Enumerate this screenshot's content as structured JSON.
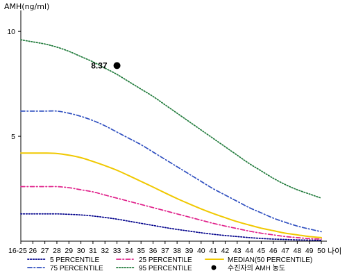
{
  "chart_data": {
    "type": "line",
    "ylabel": "AMH(ng/ml)",
    "xlabel": "나이",
    "categories": [
      "16-25",
      "26",
      "27",
      "28",
      "29",
      "30",
      "31",
      "32",
      "33",
      "34",
      "35",
      "36",
      "37",
      "38",
      "39",
      "40",
      "41",
      "42",
      "43",
      "44",
      "45",
      "46",
      "47",
      "48",
      "49",
      "50"
    ],
    "y_ticks": [
      5,
      10
    ],
    "ylim": [
      0,
      11
    ],
    "grid": false,
    "series": [
      {
        "name": "5 PERCENTILE",
        "color": "#00008b",
        "style": "dotted",
        "values": [
          1.3,
          1.3,
          1.3,
          1.3,
          1.28,
          1.25,
          1.2,
          1.13,
          1.05,
          0.95,
          0.85,
          0.75,
          0.65,
          0.56,
          0.48,
          0.4,
          0.33,
          0.27,
          0.22,
          0.17,
          0.13,
          0.1,
          0.08,
          0.06,
          0.05,
          0.04
        ]
      },
      {
        "name": "75 PERCENTILE",
        "color": "#3050c0",
        "style": "dashdot",
        "values": [
          6.2,
          6.2,
          6.2,
          6.2,
          6.1,
          5.95,
          5.75,
          5.5,
          5.2,
          4.9,
          4.6,
          4.25,
          3.9,
          3.55,
          3.2,
          2.85,
          2.5,
          2.2,
          1.9,
          1.6,
          1.35,
          1.1,
          0.9,
          0.72,
          0.58,
          0.45
        ]
      },
      {
        "name": "25 PERCENTILE",
        "color": "#e0208a",
        "style": "dashdot",
        "values": [
          2.6,
          2.6,
          2.6,
          2.6,
          2.55,
          2.45,
          2.35,
          2.2,
          2.05,
          1.9,
          1.75,
          1.6,
          1.45,
          1.3,
          1.15,
          1.0,
          0.85,
          0.72,
          0.6,
          0.48,
          0.38,
          0.3,
          0.22,
          0.17,
          0.12,
          0.1
        ]
      },
      {
        "name": "95 PERCENTILE",
        "color": "#1f7a3a",
        "style": "dotted",
        "values": [
          9.6,
          9.5,
          9.4,
          9.25,
          9.05,
          8.8,
          8.55,
          8.25,
          7.95,
          7.6,
          7.25,
          6.9,
          6.5,
          6.1,
          5.7,
          5.3,
          4.9,
          4.5,
          4.1,
          3.7,
          3.35,
          3.0,
          2.7,
          2.45,
          2.25,
          2.05
        ]
      },
      {
        "name": "MEDIAN(50 PERCENTILE)",
        "color": "#f0c800",
        "style": "solid",
        "values": [
          4.2,
          4.2,
          4.2,
          4.18,
          4.1,
          3.98,
          3.8,
          3.6,
          3.38,
          3.12,
          2.85,
          2.58,
          2.3,
          2.03,
          1.78,
          1.54,
          1.32,
          1.12,
          0.93,
          0.77,
          0.62,
          0.5,
          0.38,
          0.3,
          0.22,
          0.17
        ]
      }
    ],
    "marker": {
      "name": "수진자의 AMH 농도",
      "x": "33",
      "y": 8.37,
      "label": "8.37",
      "color": "#000000"
    },
    "legend": {
      "placement": "bottom",
      "items": [
        {
          "name": "5 PERCENTILE",
          "color": "#00008b",
          "style": "dotted"
        },
        {
          "name": "25 PERCENTILE",
          "color": "#e0208a",
          "style": "dashdot"
        },
        {
          "name": "MEDIAN(50 PERCENTILE)",
          "color": "#f0c800",
          "style": "solid"
        },
        {
          "name": "75 PERCENTILE",
          "color": "#3050c0",
          "style": "dashdot"
        },
        {
          "name": "95 PERCENTILE",
          "color": "#1f7a3a",
          "style": "dotted"
        },
        {
          "name": "수진자의 AMH 농도",
          "color": "#000000",
          "style": "marker"
        }
      ]
    }
  }
}
